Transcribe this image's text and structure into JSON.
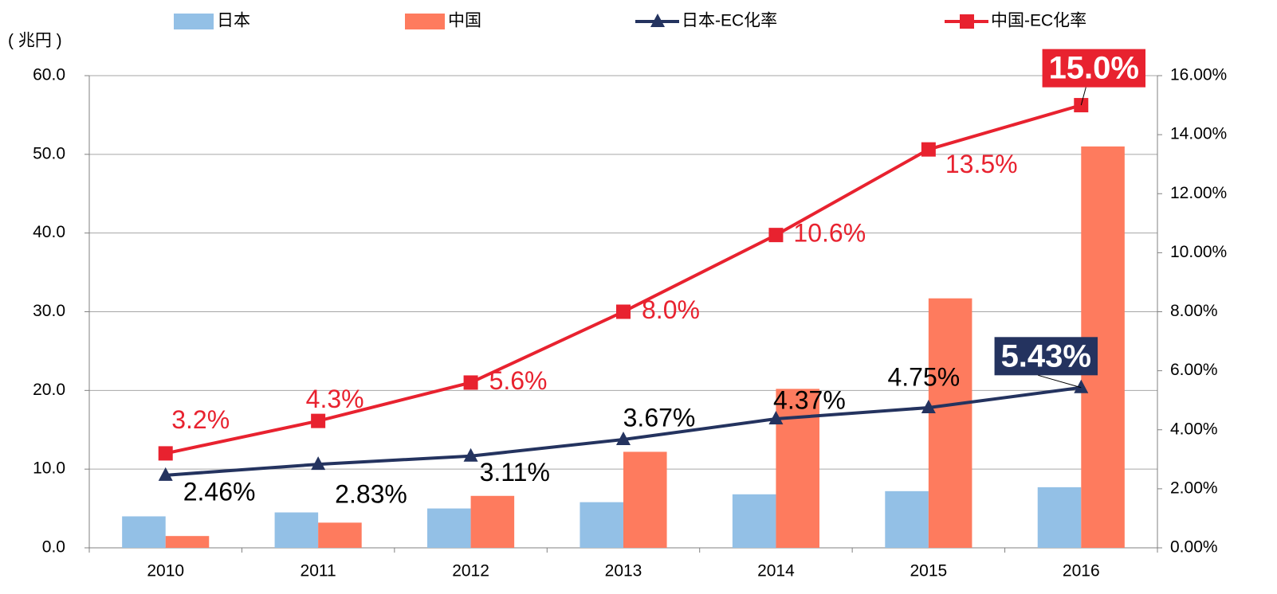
{
  "chart_data": {
    "type": "bar",
    "y_label": "( 兆円 )",
    "categories": [
      "2010",
      "2011",
      "2012",
      "2013",
      "2014",
      "2015",
      "2016"
    ],
    "series": [
      {
        "name": "日本",
        "type": "bar",
        "color": "#93c0e6",
        "values": [
          4.0,
          4.5,
          5.0,
          5.8,
          6.8,
          7.2,
          7.7
        ]
      },
      {
        "name": "中国",
        "type": "bar",
        "color": "#fe7b5e",
        "values": [
          1.5,
          3.2,
          6.6,
          12.2,
          20.2,
          31.7,
          51.0
        ]
      },
      {
        "name": "日本-EC化率",
        "type": "line",
        "axis": "y2",
        "marker": "triangle",
        "color": "#24335f",
        "values": [
          2.46,
          2.83,
          3.11,
          3.67,
          4.37,
          4.75,
          5.43
        ],
        "value_labels": [
          "2.46%",
          "2.83%",
          "3.11%",
          "3.67%",
          "4.37%",
          "4.75%",
          "5.43%"
        ]
      },
      {
        "name": "中国-EC化率",
        "type": "line",
        "axis": "y2",
        "marker": "square",
        "color": "#e8222f",
        "values": [
          3.2,
          4.3,
          5.6,
          8.0,
          10.6,
          13.5,
          15.0
        ],
        "value_labels": [
          "3.2%",
          "4.3%",
          "5.6%",
          "8.0%",
          "10.6%",
          "13.5%",
          "15.0%"
        ]
      }
    ],
    "ylim": [
      0,
      60
    ],
    "yticks": [
      {
        "value": 0,
        "label": "0.0"
      },
      {
        "value": 10,
        "label": "10.0"
      },
      {
        "value": 20,
        "label": "20.0"
      },
      {
        "value": 30,
        "label": "30.0"
      },
      {
        "value": 40,
        "label": "40.0"
      },
      {
        "value": 50,
        "label": "50.0"
      },
      {
        "value": 60,
        "label": "60.0"
      }
    ],
    "y2lim": [
      0,
      16
    ],
    "y2ticks": [
      {
        "value": 0,
        "label": "0.00%"
      },
      {
        "value": 2,
        "label": "2.00%"
      },
      {
        "value": 4,
        "label": "4.00%"
      },
      {
        "value": 6,
        "label": "6.00%"
      },
      {
        "value": 8,
        "label": "8.00%"
      },
      {
        "value": 10,
        "label": "10.00%"
      },
      {
        "value": 12,
        "label": "12.00%"
      },
      {
        "value": 14,
        "label": "14.00%"
      },
      {
        "value": 16,
        "label": "16.00%"
      }
    ],
    "grid": true,
    "legend": "top"
  }
}
